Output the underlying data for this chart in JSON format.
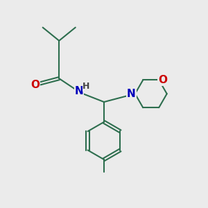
{
  "bg_color": "#EBEBEB",
  "bond_color": "#2d6e4e",
  "bond_width": 1.5,
  "atom_colors": {
    "O": "#cc0000",
    "N": "#0000bb",
    "H": "#444444",
    "C": "#2d6e4e"
  },
  "font_size": 10.5
}
